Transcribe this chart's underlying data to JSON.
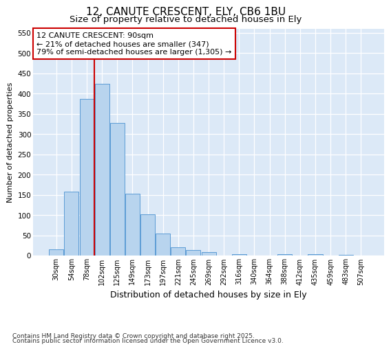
{
  "title1": "12, CANUTE CRESCENT, ELY, CB6 1BU",
  "title2": "Size of property relative to detached houses in Ely",
  "xlabel": "Distribution of detached houses by size in Ely",
  "ylabel": "Number of detached properties",
  "categories": [
    "30sqm",
    "54sqm",
    "78sqm",
    "102sqm",
    "125sqm",
    "149sqm",
    "173sqm",
    "197sqm",
    "221sqm",
    "245sqm",
    "269sqm",
    "292sqm",
    "316sqm",
    "340sqm",
    "364sqm",
    "388sqm",
    "412sqm",
    "435sqm",
    "459sqm",
    "483sqm",
    "507sqm"
  ],
  "values": [
    15,
    157,
    387,
    424,
    328,
    153,
    102,
    55,
    20,
    14,
    8,
    0,
    4,
    0,
    0,
    3,
    0,
    3,
    0,
    2,
    0
  ],
  "bar_color": "#b8d4ee",
  "bar_edge_color": "#5b9bd5",
  "vline_color": "#cc0000",
  "vline_pos": 2.5,
  "annotation_line1": "12 CANUTE CRESCENT: 90sqm",
  "annotation_line2": "← 21% of detached houses are smaller (347)",
  "annotation_line3": "79% of semi-detached houses are larger (1,305) →",
  "annotation_box_edgecolor": "#cc0000",
  "ylim_max": 560,
  "yticks": [
    0,
    50,
    100,
    150,
    200,
    250,
    300,
    350,
    400,
    450,
    500,
    550
  ],
  "plot_bg_color": "#dce9f7",
  "fig_bg_color": "#ffffff",
  "grid_color": "#ffffff",
  "footer_line1": "Contains HM Land Registry data © Crown copyright and database right 2025.",
  "footer_line2": "Contains public sector information licensed under the Open Government Licence v3.0.",
  "title_fontsize": 11,
  "subtitle_fontsize": 9.5,
  "tick_fontsize": 7,
  "ylabel_fontsize": 8,
  "xlabel_fontsize": 9,
  "ann_fontsize": 8,
  "footer_fontsize": 6.5
}
